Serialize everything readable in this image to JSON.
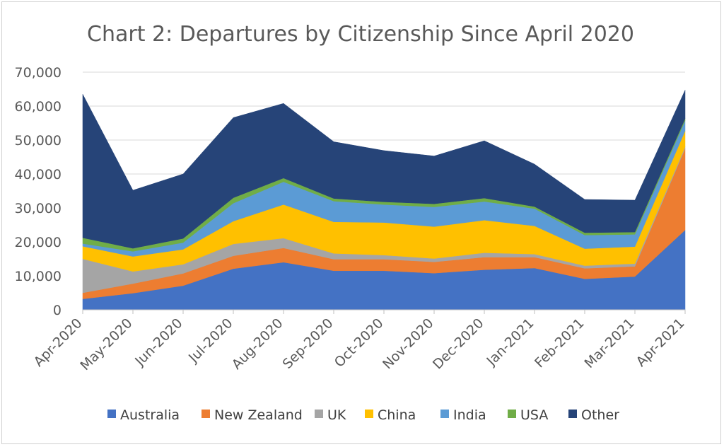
{
  "chart_data": {
    "type": "area",
    "stacked": true,
    "title": "Chart 2: Departures by Citizenship Since April 2020",
    "xlabel": "",
    "ylabel": "",
    "ylim": [
      0,
      70000
    ],
    "yticks": [
      0,
      10000,
      20000,
      30000,
      40000,
      50000,
      60000,
      70000
    ],
    "ytick_labels": [
      "0",
      "10,000",
      "20,000",
      "30,000",
      "40,000",
      "50,000",
      "60,000",
      "70,000"
    ],
    "grid": true,
    "legend_position": "bottom",
    "categories": [
      "Apr-2020",
      "May-2020",
      "Jun-2020",
      "Jul-2020",
      "Aug-2020",
      "Sep-2020",
      "Oct-2020",
      "Nov-2020",
      "Dec-2020",
      "Jan-2021",
      "Feb-2021",
      "Mar-2021",
      "Apr-2021"
    ],
    "series": [
      {
        "name": "Australia",
        "color": "#4472C4",
        "values": [
          3200,
          4900,
          7100,
          12100,
          14000,
          11500,
          11500,
          10800,
          11800,
          12300,
          9100,
          9800,
          23500
        ]
      },
      {
        "name": "New Zealand",
        "color": "#ED7D31",
        "values": [
          1800,
          2800,
          3600,
          3800,
          4200,
          3400,
          3400,
          3300,
          3700,
          3200,
          3100,
          3000,
          24000
        ]
      },
      {
        "name": "UK",
        "color": "#A5A5A5",
        "values": [
          10000,
          3600,
          2700,
          3500,
          2900,
          1700,
          1200,
          1000,
          1300,
          900,
          800,
          800,
          500
        ]
      },
      {
        "name": "China",
        "color": "#FFC000",
        "values": [
          3700,
          4400,
          4400,
          6700,
          9900,
          9300,
          9600,
          9400,
          9600,
          8300,
          5000,
          5000,
          4700
        ]
      },
      {
        "name": "India",
        "color": "#5B9BD5",
        "values": [
          800,
          1500,
          2000,
          5300,
          6700,
          6100,
          5300,
          5800,
          5500,
          5100,
          4000,
          3600,
          3000
        ]
      },
      {
        "name": "USA",
        "color": "#70AD47",
        "values": [
          1700,
          900,
          1200,
          1600,
          1100,
          800,
          800,
          900,
          1000,
          600,
          700,
          700,
          600
        ]
      },
      {
        "name": "Other",
        "color": "#264478",
        "values": [
          42300,
          17100,
          19000,
          23600,
          22000,
          16700,
          15100,
          14100,
          16900,
          12500,
          9800,
          9400,
          8400
        ]
      }
    ]
  }
}
